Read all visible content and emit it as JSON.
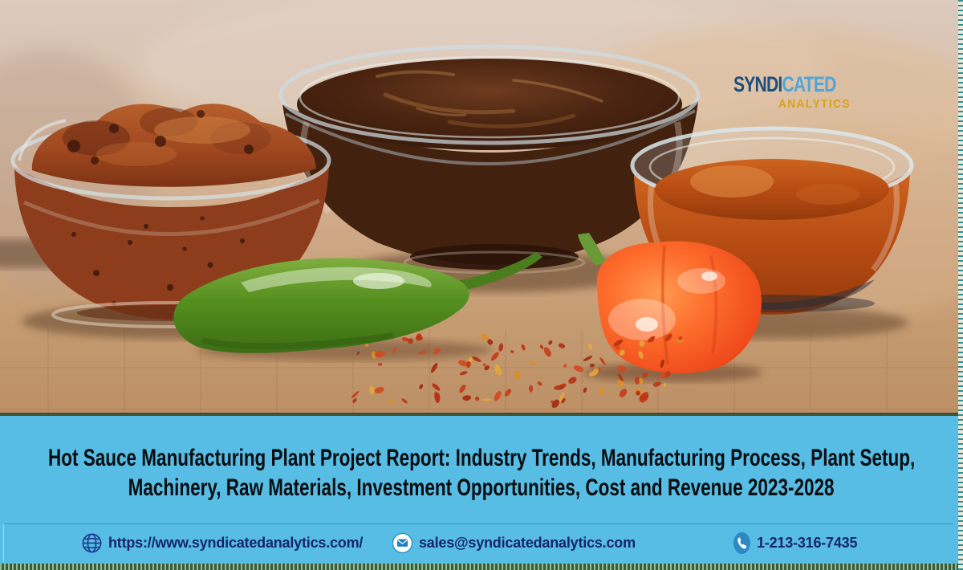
{
  "logo": {
    "brand_part1": "SYNDI",
    "brand_part2": "CATED",
    "brand_sub": "ANALYTICS",
    "mark": "dot-ring-icon"
  },
  "banner": {
    "title_lines": [
      "Hot Sauce Manufacturing Plant Project Report: Industry Trends, Manufacturing Process, Plant Setup,",
      "Machinery, Raw Materials, Investment Opportunities, Cost and Revenue 2023-2028"
    ]
  },
  "contact": {
    "website": {
      "icon": "globe-icon",
      "text": "https://www.syndicatedanalytics.com/"
    },
    "email": {
      "icon": "mail-icon",
      "text": "sales@syndicatedanalytics.com"
    },
    "phone": {
      "icon": "phone-icon",
      "text": "1-213-316-7435"
    }
  },
  "colors": {
    "banner_bg": "#57BDE4",
    "title_text": "#0B0D10",
    "contact_text": "#16246B",
    "divider_green": "#3F5233",
    "bottom_dots": "#8FBF92",
    "right_dots": "#2F8F8F",
    "logo_dark_blue": "#1E4E7C",
    "logo_light_blue": "#4EA6DA",
    "logo_gold": "#D9A21B",
    "phone_icon_blue": "#2D88C3"
  }
}
